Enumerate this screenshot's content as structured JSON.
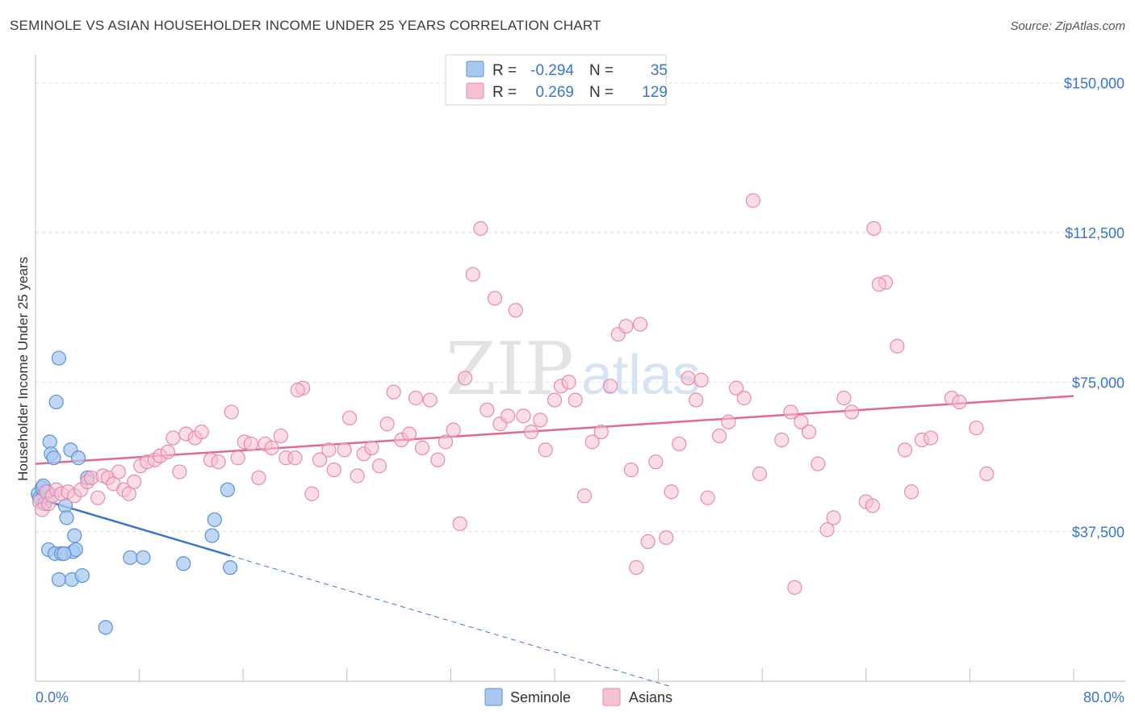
{
  "title": "SEMINOLE VS ASIAN HOUSEHOLDER INCOME UNDER 25 YEARS CORRELATION CHART",
  "source": "Source: ZipAtlas.com",
  "watermark": {
    "zip": "ZIP",
    "atlas": "atlas"
  },
  "legend": {
    "r_label": "R =",
    "n_label": "N =",
    "series": [
      {
        "r": "-0.294",
        "n": "35"
      },
      {
        "r": "0.269",
        "n": "129"
      }
    ]
  },
  "colors": {
    "seminole_fill": "#a9c8f0",
    "seminole_stroke": "#5a93d8",
    "seminole_line": "#3a76c8",
    "asian_fill": "#f6c1d3",
    "asian_stroke": "#e98aac",
    "asian_line": "#e2679a",
    "tick_text": "#3a76c8"
  },
  "chart_data": {
    "type": "scatter",
    "title": "SEMINOLE VS ASIAN HOUSEHOLDER INCOME UNDER 25 YEARS CORRELATION CHART",
    "xlabel": "",
    "ylabel": "Householder Income Under 25 years",
    "xlim": [
      0,
      80
    ],
    "ylim": [
      0,
      155000
    ],
    "x_tick_labels": [
      "0.0%",
      "80.0%"
    ],
    "y_ticks": [
      37500,
      75000,
      112500,
      150000
    ],
    "y_tick_labels": [
      "$37,500",
      "$75,000",
      "$112,500",
      "$150,000"
    ],
    "grid": "horizontal dashed",
    "legend_position": "top-center",
    "series": [
      {
        "name": "Seminole",
        "trend": {
          "x": [
            0,
            15
          ],
          "y": [
            46000,
            31500
          ],
          "dashed_extension_to_x": 49
        },
        "points": [
          [
            0.2,
            47000
          ],
          [
            0.3,
            46000
          ],
          [
            0.4,
            45500
          ],
          [
            0.5,
            48500
          ],
          [
            0.6,
            49000
          ],
          [
            0.7,
            44500
          ],
          [
            0.9,
            47500
          ],
          [
            1.0,
            33000
          ],
          [
            1.1,
            60000
          ],
          [
            1.2,
            57000
          ],
          [
            1.4,
            56000
          ],
          [
            1.5,
            32000
          ],
          [
            1.6,
            70000
          ],
          [
            1.8,
            81000
          ],
          [
            1.8,
            25500
          ],
          [
            2.0,
            32000
          ],
          [
            2.3,
            44000
          ],
          [
            2.4,
            41000
          ],
          [
            2.7,
            58000
          ],
          [
            2.8,
            25500
          ],
          [
            2.9,
            32500
          ],
          [
            3.0,
            36500
          ],
          [
            3.1,
            33000
          ],
          [
            3.3,
            56000
          ],
          [
            3.6,
            26500
          ],
          [
            4.0,
            51000
          ],
          [
            5.4,
            13500
          ],
          [
            7.3,
            31000
          ],
          [
            8.3,
            31000
          ],
          [
            11.4,
            29500
          ],
          [
            13.6,
            36500
          ],
          [
            13.8,
            40500
          ],
          [
            14.8,
            48000
          ],
          [
            15.0,
            28500
          ],
          [
            2.2,
            32000
          ]
        ]
      },
      {
        "name": "Asians",
        "trend": {
          "x": [
            0,
            80
          ],
          "y": [
            54500,
            71500
          ]
        },
        "points": [
          [
            0.3,
            45000
          ],
          [
            0.5,
            43000
          ],
          [
            0.8,
            47500
          ],
          [
            1.0,
            44500
          ],
          [
            1.3,
            46500
          ],
          [
            1.6,
            48000
          ],
          [
            2.0,
            47000
          ],
          [
            2.5,
            47500
          ],
          [
            3.0,
            46500
          ],
          [
            3.5,
            48000
          ],
          [
            4.0,
            50000
          ],
          [
            4.3,
            51000
          ],
          [
            4.8,
            46000
          ],
          [
            5.2,
            51500
          ],
          [
            5.6,
            51000
          ],
          [
            6.0,
            49500
          ],
          [
            6.4,
            52500
          ],
          [
            6.8,
            48000
          ],
          [
            7.2,
            47000
          ],
          [
            7.6,
            50000
          ],
          [
            8.1,
            54000
          ],
          [
            8.6,
            55000
          ],
          [
            9.2,
            55500
          ],
          [
            9.6,
            56500
          ],
          [
            10.2,
            57500
          ],
          [
            10.6,
            61000
          ],
          [
            11.1,
            52500
          ],
          [
            11.6,
            62000
          ],
          [
            12.3,
            61000
          ],
          [
            12.8,
            62500
          ],
          [
            13.5,
            55500
          ],
          [
            14.1,
            55000
          ],
          [
            15.1,
            67500
          ],
          [
            15.6,
            56000
          ],
          [
            16.1,
            60000
          ],
          [
            16.6,
            59500
          ],
          [
            17.2,
            51000
          ],
          [
            17.7,
            59500
          ],
          [
            18.2,
            58500
          ],
          [
            18.9,
            61500
          ],
          [
            19.3,
            56000
          ],
          [
            20.0,
            56000
          ],
          [
            20.6,
            73500
          ],
          [
            21.3,
            47000
          ],
          [
            21.9,
            55500
          ],
          [
            22.6,
            58000
          ],
          [
            23.0,
            53000
          ],
          [
            23.8,
            58000
          ],
          [
            24.2,
            66000
          ],
          [
            24.8,
            51500
          ],
          [
            25.3,
            57000
          ],
          [
            25.9,
            58500
          ],
          [
            26.5,
            54000
          ],
          [
            27.1,
            64500
          ],
          [
            27.6,
            72500
          ],
          [
            28.2,
            60500
          ],
          [
            28.8,
            62000
          ],
          [
            29.3,
            71000
          ],
          [
            29.8,
            58500
          ],
          [
            30.4,
            70500
          ],
          [
            31.0,
            55500
          ],
          [
            31.6,
            60000
          ],
          [
            32.2,
            63000
          ],
          [
            32.7,
            39500
          ],
          [
            33.1,
            76000
          ],
          [
            33.7,
            102000
          ],
          [
            34.3,
            113500
          ],
          [
            34.8,
            68000
          ],
          [
            35.4,
            96000
          ],
          [
            35.8,
            64500
          ],
          [
            36.4,
            66500
          ],
          [
            37.0,
            93000
          ],
          [
            37.6,
            66500
          ],
          [
            38.2,
            62500
          ],
          [
            38.9,
            65500
          ],
          [
            39.3,
            58000
          ],
          [
            40.0,
            70500
          ],
          [
            40.5,
            74000
          ],
          [
            41.1,
            75000
          ],
          [
            41.6,
            70500
          ],
          [
            42.3,
            46500
          ],
          [
            42.9,
            60000
          ],
          [
            43.6,
            62500
          ],
          [
            44.3,
            74000
          ],
          [
            44.9,
            87000
          ],
          [
            45.5,
            89000
          ],
          [
            45.9,
            53000
          ],
          [
            46.6,
            89500
          ],
          [
            47.2,
            35000
          ],
          [
            47.8,
            55000
          ],
          [
            48.6,
            36000
          ],
          [
            49.0,
            47500
          ],
          [
            49.6,
            59500
          ],
          [
            50.3,
            76000
          ],
          [
            50.9,
            70500
          ],
          [
            51.3,
            75500
          ],
          [
            51.8,
            46000
          ],
          [
            52.7,
            61500
          ],
          [
            53.4,
            65000
          ],
          [
            54.0,
            73500
          ],
          [
            54.6,
            71000
          ],
          [
            55.3,
            120500
          ],
          [
            55.8,
            52000
          ],
          [
            57.5,
            60500
          ],
          [
            58.2,
            67500
          ],
          [
            59.0,
            65000
          ],
          [
            59.6,
            62500
          ],
          [
            60.3,
            54500
          ],
          [
            61.0,
            38000
          ],
          [
            61.5,
            41000
          ],
          [
            62.3,
            71000
          ],
          [
            62.9,
            67500
          ],
          [
            64.0,
            45000
          ],
          [
            64.5,
            44000
          ],
          [
            65.5,
            100000
          ],
          [
            66.4,
            84000
          ],
          [
            67.0,
            58000
          ],
          [
            67.5,
            47500
          ],
          [
            68.3,
            60500
          ],
          [
            69.0,
            61000
          ],
          [
            70.6,
            71000
          ],
          [
            71.2,
            70000
          ],
          [
            72.5,
            63500
          ],
          [
            73.3,
            52000
          ],
          [
            58.5,
            23500
          ],
          [
            46.3,
            28500
          ],
          [
            64.6,
            113500
          ],
          [
            65.0,
            99500
          ],
          [
            20.2,
            73000
          ]
        ]
      }
    ]
  },
  "bottom_legend": [
    {
      "label": "Seminole"
    },
    {
      "label": "Asians"
    }
  ]
}
